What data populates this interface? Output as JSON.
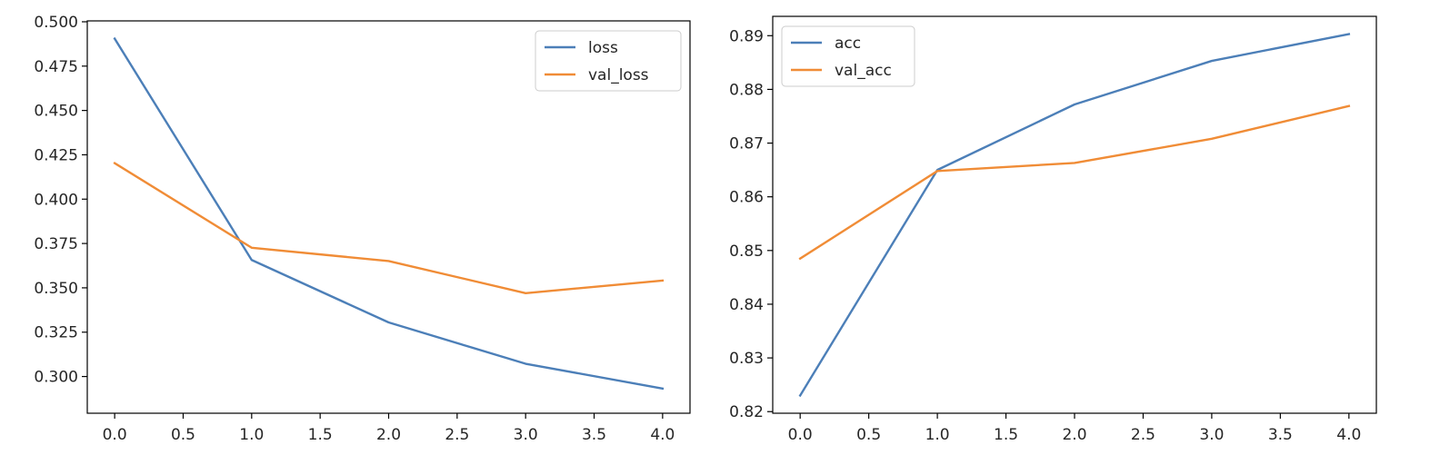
{
  "chart_data": [
    {
      "type": "line",
      "title": "",
      "xlabel": "",
      "ylabel": "",
      "x": [
        0,
        1,
        2,
        3,
        4
      ],
      "xlim": [
        -0.2,
        4.2
      ],
      "ylim": [
        0.2793,
        0.5005
      ],
      "xticks": [
        0.0,
        0.5,
        1.0,
        1.5,
        2.0,
        2.5,
        3.0,
        3.5,
        4.0
      ],
      "xtick_labels": [
        "0.0",
        "0.5",
        "1.0",
        "1.5",
        "2.0",
        "2.5",
        "3.0",
        "3.5",
        "4.0"
      ],
      "yticks": [
        0.3,
        0.325,
        0.35,
        0.375,
        0.4,
        0.425,
        0.45,
        0.475,
        0.5
      ],
      "ytick_labels": [
        "0.300",
        "0.325",
        "0.350",
        "0.375",
        "0.400",
        "0.425",
        "0.450",
        "0.475",
        "0.500"
      ],
      "grid": false,
      "legend": "top-right",
      "series": [
        {
          "name": "loss",
          "color": "#4c7fb8",
          "values": [
            0.4905,
            0.3657,
            0.3305,
            0.3072,
            0.2932
          ]
        },
        {
          "name": "val_loss",
          "color": "#f08c36",
          "values": [
            0.4203,
            0.3726,
            0.3651,
            0.347,
            0.3541
          ]
        }
      ]
    },
    {
      "type": "line",
      "title": "",
      "xlabel": "",
      "ylabel": "",
      "x": [
        0,
        1,
        2,
        3,
        4
      ],
      "xlim": [
        -0.2,
        4.2
      ],
      "ylim": [
        0.8197,
        0.8936
      ],
      "xticks": [
        0.0,
        0.5,
        1.0,
        1.5,
        2.0,
        2.5,
        3.0,
        3.5,
        4.0
      ],
      "xtick_labels": [
        "0.0",
        "0.5",
        "1.0",
        "1.5",
        "2.0",
        "2.5",
        "3.0",
        "3.5",
        "4.0"
      ],
      "yticks": [
        0.82,
        0.83,
        0.84,
        0.85,
        0.86,
        0.87,
        0.88,
        0.89
      ],
      "ytick_labels": [
        "0.82",
        "0.83",
        "0.84",
        "0.85",
        "0.86",
        "0.87",
        "0.88",
        "0.89"
      ],
      "grid": false,
      "legend": "top-left",
      "series": [
        {
          "name": "acc",
          "color": "#4c7fb8",
          "values": [
            0.823,
            0.865,
            0.8772,
            0.8853,
            0.8903
          ]
        },
        {
          "name": "val_acc",
          "color": "#f08c36",
          "values": [
            0.8485,
            0.8648,
            0.8663,
            0.8708,
            0.8769
          ]
        }
      ]
    }
  ]
}
